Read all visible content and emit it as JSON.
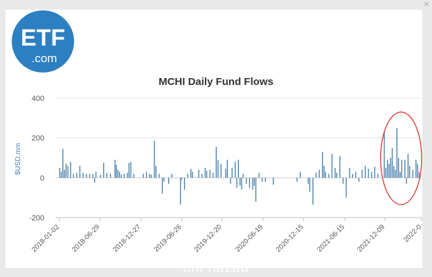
{
  "modal": {
    "close_glyph": "×",
    "logo": {
      "main": "ETF",
      "sub": ".com",
      "color": "#2c7fc0"
    },
    "watermark": "uni nazad"
  },
  "chart_data": {
    "type": "bar",
    "title": "MCHI Daily Fund Flows",
    "ylabel": "$USD,mm",
    "xlabel": "",
    "ylim": [
      -200,
      400
    ],
    "yticks": [
      -200,
      0,
      200,
      400
    ],
    "xrange": [
      "2017-12-15",
      "2022-05-20"
    ],
    "xticks": [
      "2018-01-02",
      "2018-06-29",
      "2018-12-27",
      "2019-06-26",
      "2019-12-20",
      "2020-06-19",
      "2020-12-15",
      "2021-06-15",
      "2021-12-09",
      "2022-0"
    ],
    "bar_color": "#3d78a6",
    "grid": true,
    "legend": "none",
    "annotation": {
      "shape": "ellipse",
      "color": "#d9362b",
      "x_from": "2021-11-20",
      "x_to": "2022-05-20",
      "y_from": -135,
      "y_to": 330
    },
    "series": [
      {
        "points": [
          [
            "2018-01-03",
            50
          ],
          [
            "2018-01-10",
            30
          ],
          [
            "2018-01-17",
            145
          ],
          [
            "2018-01-24",
            40
          ],
          [
            "2018-01-31",
            70
          ],
          [
            "2018-02-08",
            60
          ],
          [
            "2018-02-20",
            80
          ],
          [
            "2018-03-05",
            20
          ],
          [
            "2018-03-19",
            25
          ],
          [
            "2018-04-02",
            60
          ],
          [
            "2018-04-16",
            25
          ],
          [
            "2018-05-01",
            20
          ],
          [
            "2018-05-15",
            20
          ],
          [
            "2018-05-29",
            20
          ],
          [
            "2018-06-06",
            -25
          ],
          [
            "2018-06-12",
            30
          ],
          [
            "2018-07-02",
            15
          ],
          [
            "2018-07-16",
            75
          ],
          [
            "2018-07-30",
            25
          ],
          [
            "2018-08-15",
            20
          ],
          [
            "2018-09-04",
            90
          ],
          [
            "2018-09-10",
            65
          ],
          [
            "2018-09-17",
            40
          ],
          [
            "2018-09-24",
            30
          ],
          [
            "2018-10-02",
            15
          ],
          [
            "2018-10-15",
            20
          ],
          [
            "2018-10-29",
            25
          ],
          [
            "2018-11-05",
            75
          ],
          [
            "2018-11-13",
            80
          ],
          [
            "2018-11-26",
            20
          ],
          [
            "2019-01-07",
            20
          ],
          [
            "2019-01-21",
            30
          ],
          [
            "2019-02-04",
            20
          ],
          [
            "2019-02-11",
            15
          ],
          [
            "2019-02-25",
            185
          ],
          [
            "2019-03-04",
            60
          ],
          [
            "2019-03-18",
            20
          ],
          [
            "2019-04-01",
            -80
          ],
          [
            "2019-04-08",
            -20
          ],
          [
            "2019-04-29",
            -30
          ],
          [
            "2019-05-13",
            20
          ],
          [
            "2019-06-20",
            -135
          ],
          [
            "2019-06-26",
            -10
          ],
          [
            "2019-07-08",
            -60
          ],
          [
            "2019-07-22",
            20
          ],
          [
            "2019-08-05",
            45
          ],
          [
            "2019-08-12",
            30
          ],
          [
            "2019-09-09",
            40
          ],
          [
            "2019-09-23",
            20
          ],
          [
            "2019-10-07",
            50
          ],
          [
            "2019-10-14",
            35
          ],
          [
            "2019-10-28",
            40
          ],
          [
            "2019-11-11",
            25
          ],
          [
            "2019-11-25",
            155
          ],
          [
            "2019-12-03",
            90
          ],
          [
            "2019-12-16",
            70
          ],
          [
            "2020-01-06",
            45
          ],
          [
            "2020-01-13",
            90
          ],
          [
            "2020-01-27",
            -30
          ],
          [
            "2020-02-03",
            50
          ],
          [
            "2020-02-17",
            80
          ],
          [
            "2020-02-24",
            -50
          ],
          [
            "2020-03-02",
            90
          ],
          [
            "2020-03-09",
            -40
          ],
          [
            "2020-03-16",
            -60
          ],
          [
            "2020-03-23",
            20
          ],
          [
            "2020-04-06",
            -30
          ],
          [
            "2020-04-20",
            -50
          ],
          [
            "2020-05-04",
            -60
          ],
          [
            "2020-05-11",
            -40
          ],
          [
            "2020-05-18",
            -120
          ],
          [
            "2020-06-01",
            25
          ],
          [
            "2020-06-15",
            -20
          ],
          [
            "2020-06-29",
            -20
          ],
          [
            "2020-08-03",
            -35
          ],
          [
            "2020-11-16",
            -20
          ],
          [
            "2020-11-30",
            30
          ],
          [
            "2021-01-04",
            -30
          ],
          [
            "2021-01-11",
            -70
          ],
          [
            "2021-01-25",
            -135
          ],
          [
            "2021-02-08",
            25
          ],
          [
            "2021-02-22",
            40
          ],
          [
            "2021-03-08",
            130
          ],
          [
            "2021-03-15",
            60
          ],
          [
            "2021-03-22",
            30
          ],
          [
            "2021-04-05",
            20
          ],
          [
            "2021-04-19",
            120
          ],
          [
            "2021-05-03",
            50
          ],
          [
            "2021-05-10",
            25
          ],
          [
            "2021-05-24",
            110
          ],
          [
            "2021-06-07",
            -30
          ],
          [
            "2021-06-21",
            -100
          ],
          [
            "2021-07-06",
            50
          ],
          [
            "2021-07-19",
            20
          ],
          [
            "2021-08-02",
            30
          ],
          [
            "2021-08-16",
            -20
          ],
          [
            "2021-08-30",
            40
          ],
          [
            "2021-09-13",
            60
          ],
          [
            "2021-09-27",
            45
          ],
          [
            "2021-10-11",
            30
          ],
          [
            "2021-10-25",
            55
          ],
          [
            "2021-11-08",
            20
          ],
          [
            "2021-12-06",
            230
          ],
          [
            "2021-12-13",
            50
          ],
          [
            "2021-12-20",
            90
          ],
          [
            "2021-12-27",
            70
          ],
          [
            "2022-01-03",
            100
          ],
          [
            "2022-01-10",
            150
          ],
          [
            "2022-01-17",
            60
          ],
          [
            "2022-01-24",
            40
          ],
          [
            "2022-01-31",
            250
          ],
          [
            "2022-02-07",
            100
          ],
          [
            "2022-02-14",
            30
          ],
          [
            "2022-02-21",
            90
          ],
          [
            "2022-03-07",
            90
          ],
          [
            "2022-03-14",
            -30
          ],
          [
            "2022-03-21",
            120
          ],
          [
            "2022-03-28",
            60
          ],
          [
            "2022-04-11",
            40
          ],
          [
            "2022-04-25",
            90
          ],
          [
            "2022-05-02",
            70
          ],
          [
            "2022-05-09",
            30
          ]
        ]
      }
    ]
  }
}
